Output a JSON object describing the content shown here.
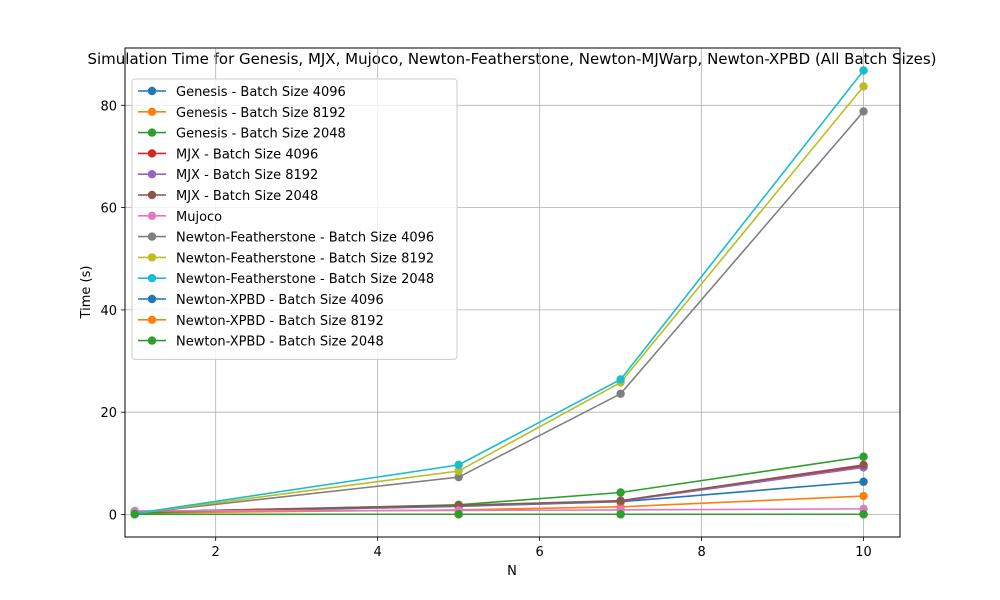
{
  "chart_data": {
    "type": "line",
    "title": "Simulation Time for Genesis, MJX, Mujoco, Newton-Featherstone, Newton-MJWarp, Newton-XPBD (All Batch Sizes)",
    "xlabel": "N",
    "ylabel": "Time (s)",
    "xlim": [
      0.88,
      10.45
    ],
    "ylim": [
      -4.4,
      91.2
    ],
    "xticks": [
      2,
      4,
      6,
      8,
      10
    ],
    "yticks": [
      0,
      20,
      40,
      60,
      80
    ],
    "grid": true,
    "legend_position": "upper-left",
    "x": [
      1,
      5,
      7,
      10
    ],
    "series": [
      {
        "name": "Genesis - Batch Size 4096",
        "color": "#1f77b4",
        "values": [
          0.3,
          1.6,
          2.5,
          6.4
        ]
      },
      {
        "name": "Genesis - Batch Size 8192",
        "color": "#ff7f0e",
        "values": [
          0.3,
          0.9,
          1.5,
          3.6
        ]
      },
      {
        "name": "Genesis - Batch Size 2048",
        "color": "#2ca02c",
        "values": [
          0.3,
          1.9,
          4.3,
          11.3
        ]
      },
      {
        "name": "MJX - Batch Size 4096",
        "color": "#d62728",
        "values": [
          0.5,
          1.7,
          2.6,
          9.5
        ]
      },
      {
        "name": "MJX - Batch Size 8192",
        "color": "#9467bd",
        "values": [
          0.5,
          1.7,
          2.6,
          9.2
        ]
      },
      {
        "name": "MJX - Batch Size 2048",
        "color": "#8c564b",
        "values": [
          0.5,
          1.8,
          2.7,
          9.7
        ]
      },
      {
        "name": "Mujoco",
        "color": "#e377c2",
        "values": [
          0.7,
          0.8,
          0.9,
          1.1
        ]
      },
      {
        "name": "Newton-Featherstone - Batch Size 4096",
        "color": "#7f7f7f",
        "values": [
          0.2,
          7.3,
          23.6,
          78.8
        ]
      },
      {
        "name": "Newton-Featherstone - Batch Size 8192",
        "color": "#bcbd22",
        "values": [
          0.2,
          8.5,
          25.8,
          83.7
        ]
      },
      {
        "name": "Newton-Featherstone - Batch Size 2048",
        "color": "#17becf",
        "values": [
          0.2,
          9.7,
          26.4,
          86.8
        ]
      },
      {
        "name": "Newton-XPBD - Batch Size 4096",
        "color": "#1f77b4",
        "values": [
          0.05,
          0.05,
          0.05,
          0.05
        ]
      },
      {
        "name": "Newton-XPBD - Batch Size 8192",
        "color": "#ff7f0e",
        "values": [
          0.05,
          0.05,
          0.05,
          0.05
        ]
      },
      {
        "name": "Newton-XPBD - Batch Size 2048",
        "color": "#2ca02c",
        "values": [
          0.05,
          0.05,
          0.05,
          0.05
        ]
      }
    ]
  }
}
